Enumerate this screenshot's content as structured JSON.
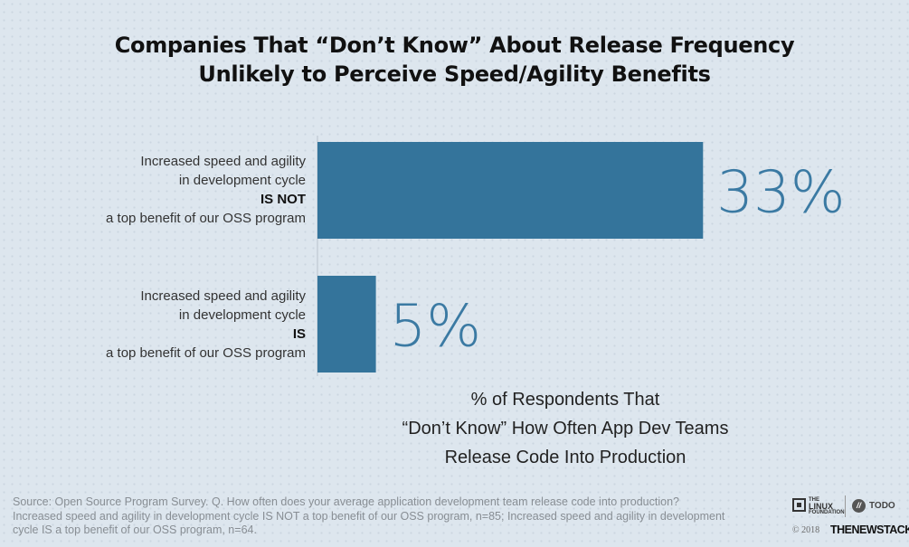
{
  "title_lines": [
    "Companies That “Don’t Know” About Release Frequency",
    "Unlikely to Perceive Speed/Agility Benefits"
  ],
  "chart_data": {
    "type": "bar",
    "orientation": "horizontal",
    "title": "Companies That “Don’t Know” About Release Frequency Unlikely to Perceive Speed/Agility Benefits",
    "categories": [
      {
        "lines": [
          "Increased speed and agility",
          "in development cycle",
          "IS NOT",
          "a top benefit of our OSS program"
        ],
        "emphasis": "IS NOT"
      },
      {
        "lines": [
          "Increased speed and agility",
          "in development cycle",
          "IS",
          "a top benefit of our OSS program"
        ],
        "emphasis": "IS"
      }
    ],
    "values": [
      33,
      5
    ],
    "data_labels": [
      "33%",
      "5%"
    ],
    "xlabel_lines": [
      "% of Respondents That",
      "“Don’t Know” How Often App Dev Teams",
      "Release Code Into Production"
    ],
    "xlim": [
      0,
      35.3
    ],
    "unit": "%",
    "grid": false,
    "legend": "none",
    "bar_color": "#34749b",
    "label_color": "#3b7aa3"
  },
  "source": "Source: Open Source Program Survey. Q. How often does your average application development team release code into production? Increased speed and agility in development cycle IS NOT a top benefit of our OSS program, n=85; Increased speed and agility in development cycle IS a top benefit of our OSS program, n=64.",
  "footer": {
    "linux_small": "THE",
    "linux_big": "LINUX",
    "linux_foundation": "FOUNDATION",
    "todo_mark": "//",
    "todo": "TODO",
    "copyright": "© 2018",
    "publisher": "THENEWSTACK"
  }
}
